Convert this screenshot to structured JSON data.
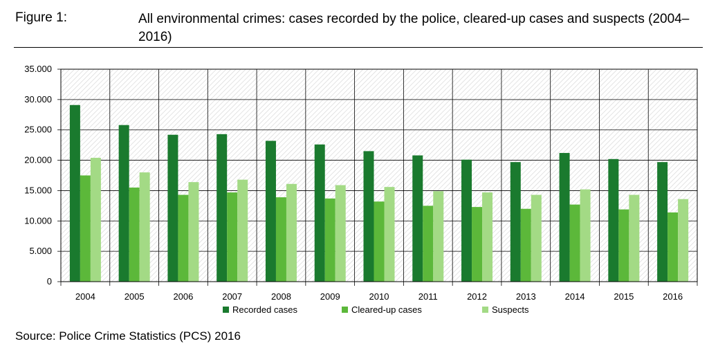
{
  "figure": {
    "label": "Figure 1:",
    "title": "All environmental crimes: cases recorded by the police, cleared-up cases and suspects (2004–2016)",
    "source": "Source: Police Crime Statistics (PCS) 2016"
  },
  "colors": {
    "recorded": "#1a7a2e",
    "cleared": "#5cb83a",
    "suspects": "#a3da85",
    "grid": "#000000",
    "hatch": "#d8d8d8"
  },
  "chart_data": {
    "type": "bar",
    "categories": [
      "2004",
      "2005",
      "2006",
      "2007",
      "2008",
      "2009",
      "2010",
      "2011",
      "2012",
      "2013",
      "2014",
      "2015",
      "2016"
    ],
    "series": [
      {
        "name": "Recorded cases",
        "values": [
          29100,
          25800,
          24200,
          24300,
          23200,
          22600,
          21500,
          20800,
          20100,
          19700,
          21200,
          20200,
          19700
        ]
      },
      {
        "name": "Cleared-up cases",
        "values": [
          17500,
          15500,
          14300,
          14700,
          13900,
          13700,
          13200,
          12500,
          12300,
          12000,
          12700,
          11900,
          11400
        ]
      },
      {
        "name": "Suspects",
        "values": [
          20400,
          18000,
          16400,
          16800,
          16100,
          15900,
          15600,
          14900,
          14700,
          14300,
          15200,
          14300,
          13600
        ]
      }
    ],
    "ylim": [
      0,
      35000
    ],
    "yticks": [
      "0",
      "5.000",
      "10.000",
      "15.000",
      "20.000",
      "25.000",
      "30.000",
      "35.000"
    ],
    "grid": true,
    "legend": "bottom"
  }
}
